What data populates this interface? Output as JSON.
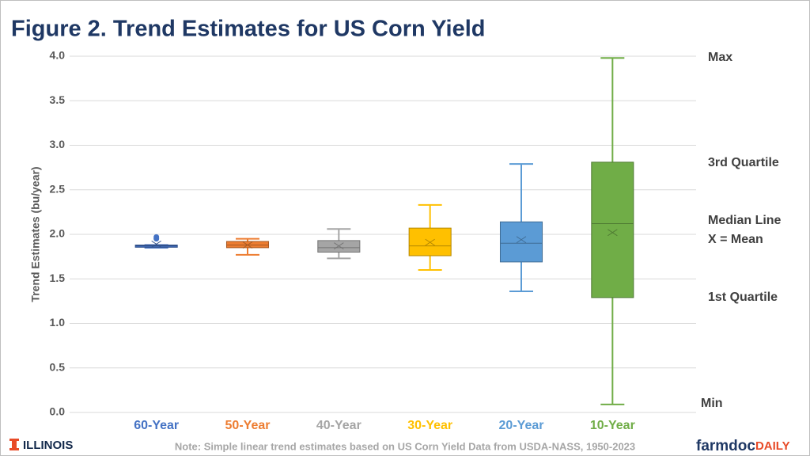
{
  "chart_data": {
    "type": "box",
    "title": "Figure 2. Trend Estimates for US Corn Yield",
    "y_label": "Trend Estimates (bu/year)",
    "ylim": [
      0,
      4
    ],
    "yticks": [
      {
        "value": 0,
        "label": "0.0"
      },
      0.5,
      {
        "value": 1,
        "label": "1.0"
      },
      1.5,
      {
        "value": 2,
        "label": "2.0"
      },
      2.5,
      {
        "value": 3,
        "label": "3.0"
      },
      3.5,
      {
        "value": 4,
        "label": "4.0"
      }
    ],
    "grid": true,
    "series": [
      {
        "name": "60-Year",
        "color": "#4472c4",
        "min": 1.85,
        "q1": 1.855,
        "median": 1.87,
        "q3": 1.88,
        "max": 1.88,
        "mean": 1.89,
        "outliers": [
          1.97,
          1.95
        ]
      },
      {
        "name": "50-Year",
        "color": "#ed7d31",
        "min": 1.77,
        "q1": 1.85,
        "median": 1.88,
        "q3": 1.92,
        "max": 1.95,
        "mean": 1.88,
        "outliers": []
      },
      {
        "name": "40-Year",
        "color": "#a5a5a5",
        "min": 1.73,
        "q1": 1.8,
        "median": 1.85,
        "q3": 1.93,
        "max": 2.06,
        "mean": 1.87,
        "outliers": []
      },
      {
        "name": "30-Year",
        "color": "#ffc000",
        "min": 1.6,
        "q1": 1.76,
        "median": 1.87,
        "q3": 2.07,
        "max": 2.33,
        "mean": 1.91,
        "outliers": []
      },
      {
        "name": "20-Year",
        "color": "#5b9bd5",
        "min": 1.36,
        "q1": 1.69,
        "median": 1.9,
        "q3": 2.14,
        "max": 2.79,
        "mean": 1.94,
        "outliers": []
      },
      {
        "name": "10-Year",
        "color": "#70ad47",
        "min": 0.09,
        "q1": 1.29,
        "median": 2.12,
        "q3": 2.81,
        "max": 3.98,
        "mean": 2.02,
        "outliers": []
      }
    ],
    "annotations": [
      "Max",
      "3rd Quartile",
      "Median Line",
      "X = Mean",
      "1st Quartile",
      "Min"
    ],
    "note": "Note: Simple linear trend estimates based on US Corn Yield Data from USDA-NASS, 1950-2023",
    "logo_left": "ILLINOIS",
    "logo_right": [
      "farmdoc",
      "DAILY"
    ]
  }
}
